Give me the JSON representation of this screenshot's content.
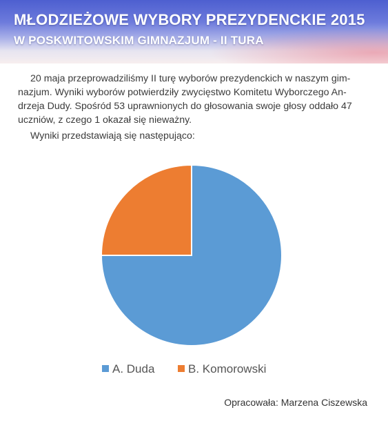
{
  "header": {
    "title_line1": "MŁODZIEŻOWE WYBORY PREZYDENCKIE 2015",
    "title_line2": "W POSKWITOWSKIM GIMNAZJUM - II TURA"
  },
  "intro": {
    "paragraph": "20 maja przeprowadziliśmy II turę wyborów prezydenckich w naszym gim-nazjum. Wyniki wyborów potwierdziły zwycięstwo Komitetu Wyborczego An-drzeja Dudy. Spośród 53 uprawnionych do głosowania swoje głosy oddało 47 uczniów, z czego 1 okazał się nieważny.",
    "lead": "Wyniki przedstawiają się następująco:"
  },
  "chart_data": {
    "type": "pie",
    "categories": [
      "A. Duda",
      "B. Komorowski"
    ],
    "values": [
      75,
      25
    ],
    "colors": [
      "#5b9bd5",
      "#ed7d31"
    ],
    "legend_position": "bottom"
  },
  "footer": {
    "credit": "Opracowała: Marzena Ciszewska"
  }
}
